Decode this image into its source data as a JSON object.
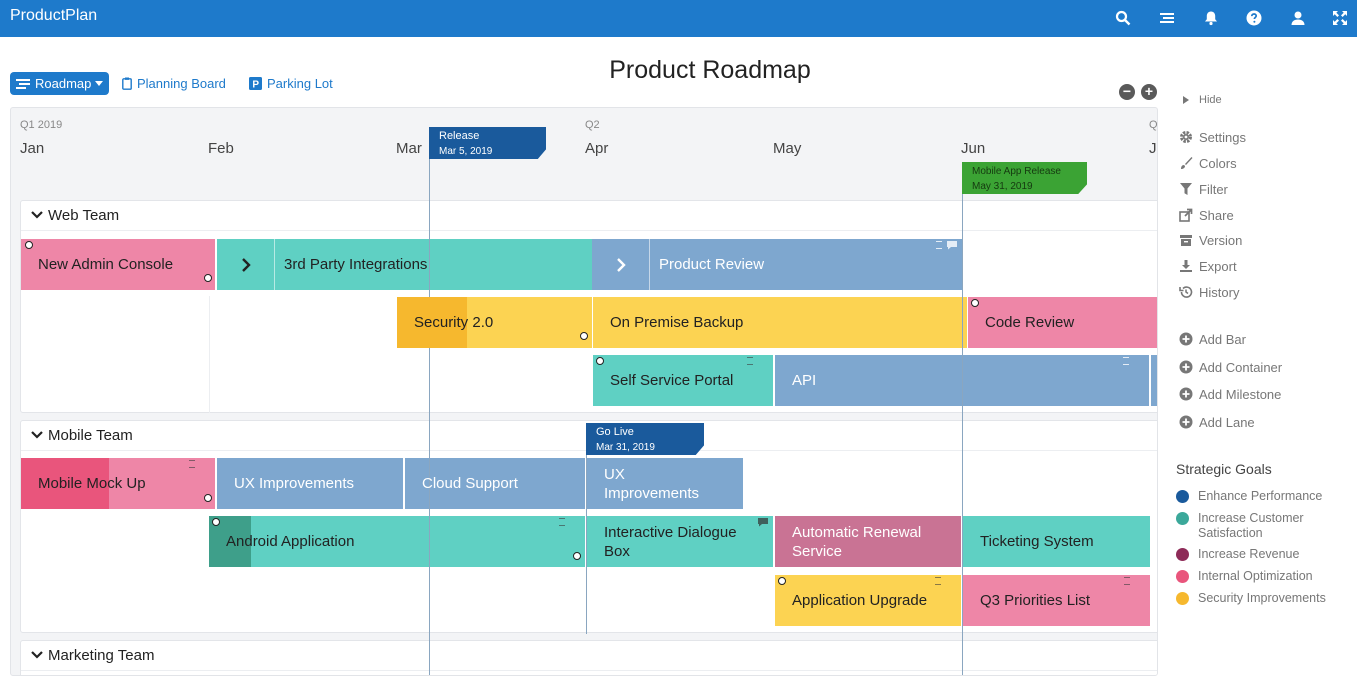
{
  "app": {
    "name": "ProductPlan"
  },
  "topbar": {
    "icons": [
      "search-icon",
      "list-icon",
      "bell-icon",
      "help-icon",
      "user-icon",
      "fullscreen-icon"
    ]
  },
  "views": {
    "roadmap": "Roadmap",
    "planning_board": "Planning Board",
    "parking_lot": "Parking Lot"
  },
  "page_title": "Product Roadmap",
  "timeline": {
    "quarters": [
      "Q1 2019",
      "Q2",
      "Q"
    ],
    "months": [
      "Jan",
      "Feb",
      "Mar",
      "Apr",
      "May",
      "Jun",
      "J"
    ]
  },
  "milestones": [
    {
      "name": "Release",
      "date": "Mar 5, 2019",
      "color": "#1a5a9c"
    },
    {
      "name": "Mobile App Release",
      "date": "May 31, 2019",
      "color": "#3ba334"
    },
    {
      "name": "Go Live",
      "date": "Mar 31, 2019",
      "color": "#1a5a9c"
    }
  ],
  "lanes": [
    {
      "title": "Web Team",
      "bars": [
        {
          "label": "New Admin Console",
          "color": "#ee86a7"
        },
        {
          "label": "3rd Party Integrations",
          "color": "#5fd0c3"
        },
        {
          "label": "Product Review",
          "color": "#7ea7cf"
        },
        {
          "label": "Security 2.0",
          "color": "#fcd352",
          "progress_color": "#f6b82e"
        },
        {
          "label": "On Premise Backup",
          "color": "#fcd352"
        },
        {
          "label": "Code Review",
          "color": "#ee86a7"
        },
        {
          "label": "Self Service Portal",
          "color": "#5fd0c3"
        },
        {
          "label": "API",
          "color": "#7ea7cf"
        }
      ]
    },
    {
      "title": "Mobile Team",
      "bars": [
        {
          "label": "Mobile Mock Up",
          "color": "#ee86a7",
          "progress_color": "#e9557c"
        },
        {
          "label": "UX Improvements",
          "color": "#7ea7cf"
        },
        {
          "label": "Cloud Support",
          "color": "#7ea7cf"
        },
        {
          "label": "UX Improvements",
          "color": "#7ea7cf"
        },
        {
          "label": "Android Application",
          "color": "#5fd0c3",
          "progress_color": "#3e9f8a"
        },
        {
          "label": "Interactive Dialogue Box",
          "color": "#5fd0c3"
        },
        {
          "label": "Automatic Renewal Service",
          "color": "#c97394"
        },
        {
          "label": "Ticketing System",
          "color": "#5fd0c3"
        },
        {
          "label": "Application Upgrade",
          "color": "#fcd352"
        },
        {
          "label": "Q3 Priorities List",
          "color": "#ee86a7"
        }
      ]
    },
    {
      "title": "Marketing Team",
      "bars": []
    }
  ],
  "sidebar": {
    "hide": "Hide",
    "menu": [
      "Settings",
      "Colors",
      "Filter",
      "Share",
      "Version",
      "Export",
      "History"
    ],
    "actions": [
      "Add Bar",
      "Add Container",
      "Add Milestone",
      "Add Lane"
    ]
  },
  "strategic_goals": {
    "title": "Strategic Goals",
    "items": [
      {
        "label": "Enhance Performance",
        "color": "#1a5a9c"
      },
      {
        "label": "Increase Customer Satisfaction",
        "color": "#3ba89a"
      },
      {
        "label": "Increase Revenue",
        "color": "#8e2b58"
      },
      {
        "label": "Internal Optimization",
        "color": "#e9557c"
      },
      {
        "label": "Security Improvements",
        "color": "#f6b82e"
      }
    ]
  }
}
